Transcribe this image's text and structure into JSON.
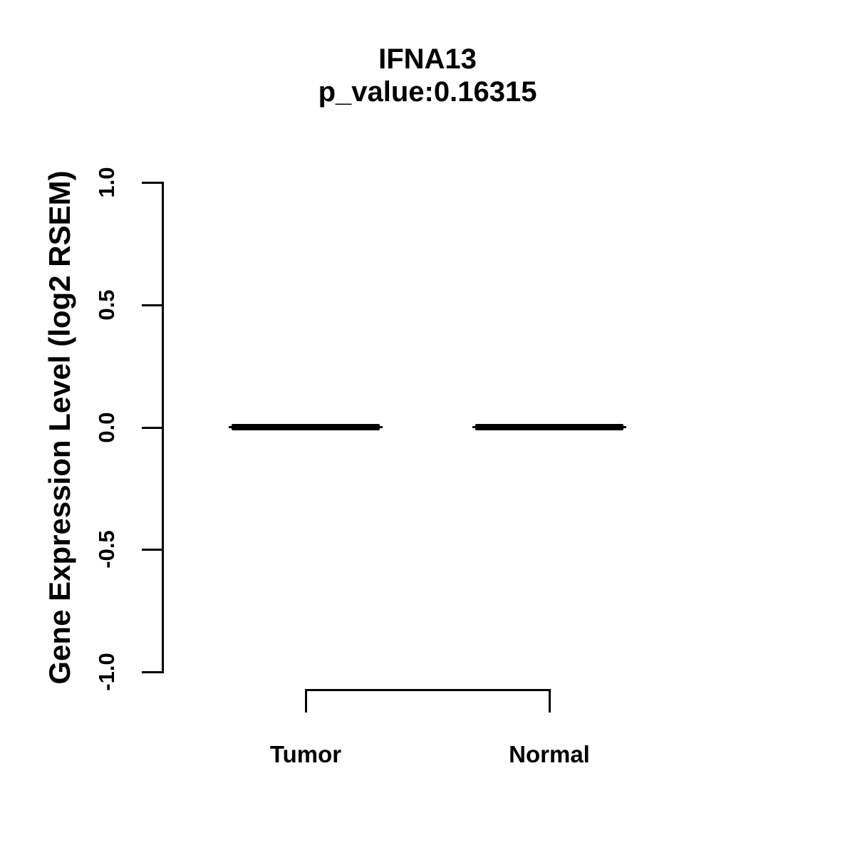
{
  "title": "IFNA13",
  "subtitle": "p_value:0.16315",
  "colors": {
    "foreground": "#000000",
    "background": "#ffffff"
  },
  "chart_data": {
    "type": "boxplot",
    "title": "IFNA13",
    "subtitle": "p_value:0.16315",
    "gene": "IFNA13",
    "p_value": 0.16315,
    "categories": [
      "Tumor",
      "Normal"
    ],
    "series": [
      {
        "name": "Tumor",
        "median": 0.0,
        "q1": 0.0,
        "q3": 0.0,
        "whisker_low": 0.0,
        "whisker_high": 0.0
      },
      {
        "name": "Normal",
        "median": 0.0,
        "q1": 0.0,
        "q3": 0.0,
        "whisker_low": 0.0,
        "whisker_high": 0.0
      }
    ],
    "xlabel": "",
    "ylabel": "Gene Expression Level (log2 RSEM)",
    "ylim": [
      -1.0,
      1.0
    ],
    "yticks": [
      1.0,
      0.5,
      0.0,
      -0.5,
      -1.0
    ],
    "ytick_labels": [
      "1.0",
      "0.5",
      "0.0",
      "-0.5",
      "-1.0"
    ],
    "grid": false,
    "legend": "none",
    "comparison_bracket": {
      "from": "Tumor",
      "to": "Normal"
    }
  }
}
